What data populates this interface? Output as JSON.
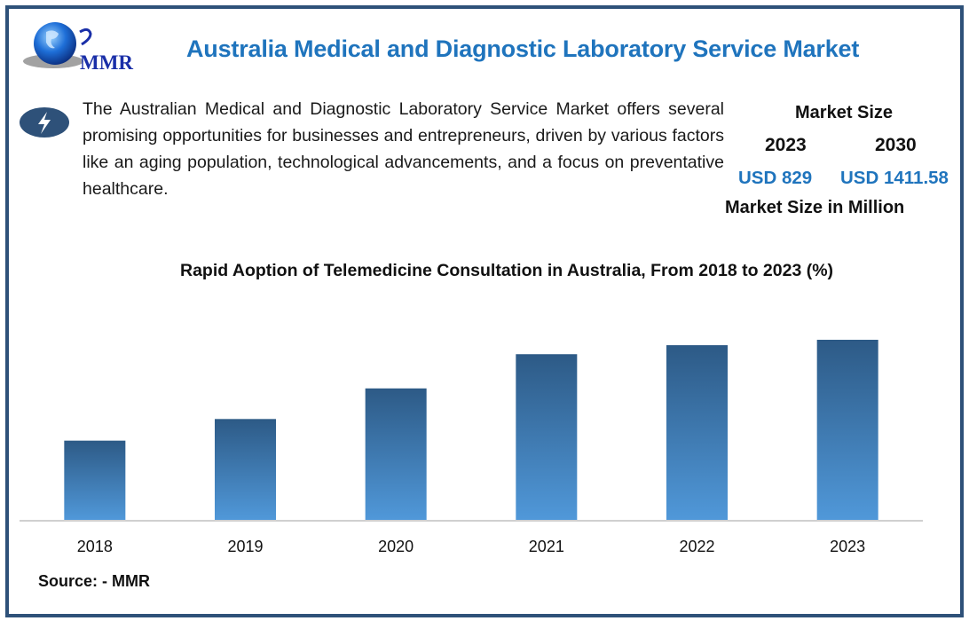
{
  "header": {
    "logo_text": "MMR",
    "title": "Australia Medical and Diagnostic Laboratory Service Market"
  },
  "description": {
    "icon": "lightning-bolt-icon",
    "text": "The Australian Medical and Diagnostic Laboratory Service Market offers several promising opportunities for businesses and entrepreneurs, driven by various factors like an aging population, technological advancements, and a focus on preventative healthcare."
  },
  "market_size": {
    "title": "Market Size",
    "year_start": "2023",
    "year_end": "2030",
    "value_start": "USD 829",
    "value_end": "USD 1411.58",
    "unit_label": "Market Size in Million"
  },
  "chart_data": {
    "type": "bar",
    "title": "Rapid Aoption of Telemedicine Consultation in Australia, From 2018 to 2023 (%)",
    "categories": [
      "2018",
      "2019",
      "2020",
      "2021",
      "2022",
      "2023"
    ],
    "values": [
      44,
      56,
      73,
      92,
      97,
      100
    ],
    "value_note": "relative bar heights (no axis/labels shown); scaled to 2023 = 100",
    "xlabel": "",
    "ylabel": "",
    "ylim": [
      0,
      100
    ],
    "grid": false,
    "legend": "none",
    "colors": {
      "bar_top": "#2d5a86",
      "bar_bottom": "#5098d9",
      "axis": "#d0d0d0"
    }
  },
  "footer": {
    "source": "Source: - MMR"
  }
}
